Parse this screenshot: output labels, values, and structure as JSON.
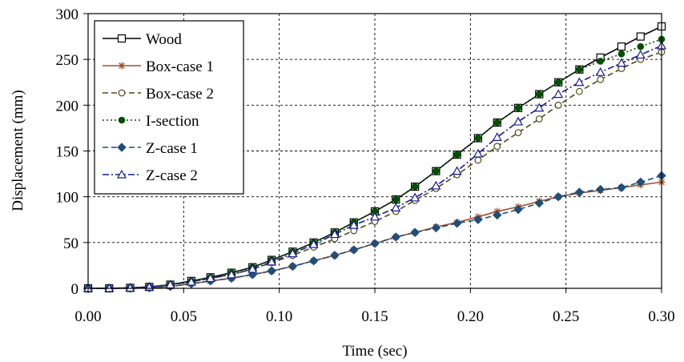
{
  "chart_data": {
    "type": "line",
    "title": "",
    "xlabel": "Time (sec)",
    "ylabel": "Displacement (mm)",
    "xlim": [
      0,
      0.3
    ],
    "ylim": [
      0,
      300
    ],
    "x_ticks": [
      0,
      0.05,
      0.1,
      0.15,
      0.2,
      0.25,
      0.3
    ],
    "x_tick_labels": [
      "0.00",
      "0.05",
      "0.10",
      "0.15",
      "0.20",
      "0.25",
      "0.30"
    ],
    "y_ticks": [
      0,
      50,
      100,
      150,
      200,
      250,
      300
    ],
    "y_tick_labels": [
      "0",
      "50",
      "100",
      "150",
      "200",
      "250",
      "300"
    ],
    "grid": "dashed",
    "legend_position": "top-left",
    "series": [
      {
        "name": "Wood",
        "color": "#000000",
        "line_style": "solid",
        "marker": "open-square",
        "x": [
          0,
          0.011,
          0.022,
          0.032,
          0.043,
          0.054,
          0.064,
          0.075,
          0.086,
          0.096,
          0.107,
          0.118,
          0.129,
          0.139,
          0.15,
          0.161,
          0.171,
          0.182,
          0.193,
          0.204,
          0.214,
          0.225,
          0.236,
          0.246,
          0.257,
          0.268,
          0.279,
          0.289,
          0.3
        ],
        "y": [
          0,
          0,
          0.5,
          1.5,
          4,
          8,
          12,
          17,
          23,
          31,
          40,
          50,
          61,
          72,
          84,
          97,
          111,
          128,
          146,
          164,
          181,
          197,
          212,
          225,
          239,
          252,
          264,
          275,
          286
        ]
      },
      {
        "name": "Box-case 1",
        "color": "#a0522d",
        "line_style": "solid",
        "marker": "star",
        "x": [
          0,
          0.011,
          0.022,
          0.032,
          0.043,
          0.054,
          0.064,
          0.075,
          0.086,
          0.096,
          0.107,
          0.118,
          0.129,
          0.139,
          0.15,
          0.161,
          0.171,
          0.182,
          0.193,
          0.204,
          0.214,
          0.225,
          0.236,
          0.246,
          0.257,
          0.268,
          0.279,
          0.289,
          0.3
        ],
        "y": [
          0,
          0,
          0,
          0.5,
          2,
          5,
          8,
          11,
          15,
          19,
          24,
          30,
          36,
          42,
          49,
          56,
          61,
          67,
          72,
          78,
          84,
          89,
          95,
          100,
          104,
          107,
          110,
          113,
          116
        ]
      },
      {
        "name": "Box-case 2",
        "color": "#4d4d1a",
        "line_style": "dashed",
        "marker": "open-circle",
        "x": [
          0,
          0.011,
          0.022,
          0.032,
          0.043,
          0.054,
          0.064,
          0.075,
          0.086,
          0.096,
          0.107,
          0.118,
          0.129,
          0.139,
          0.15,
          0.161,
          0.171,
          0.182,
          0.193,
          0.204,
          0.214,
          0.225,
          0.236,
          0.246,
          0.257,
          0.268,
          0.279,
          0.289,
          0.3
        ],
        "y": [
          0,
          0,
          0.5,
          1.5,
          4,
          7,
          11,
          15,
          21,
          28,
          36,
          45,
          54,
          63,
          73,
          84,
          96,
          109,
          124,
          140,
          155,
          170,
          185,
          200,
          215,
          228,
          240,
          250,
          258
        ]
      },
      {
        "name": "I-section",
        "color": "#005000",
        "line_style": "dotted",
        "marker": "filled-circle",
        "x": [
          0,
          0.011,
          0.022,
          0.032,
          0.043,
          0.054,
          0.064,
          0.075,
          0.086,
          0.096,
          0.107,
          0.118,
          0.129,
          0.139,
          0.15,
          0.161,
          0.171,
          0.182,
          0.193,
          0.204,
          0.214,
          0.225,
          0.236,
          0.246,
          0.257,
          0.268,
          0.279,
          0.289,
          0.3
        ],
        "y": [
          0,
          0,
          0.5,
          1.5,
          4,
          8,
          12,
          17,
          23,
          31,
          40,
          50,
          61,
          72,
          84,
          97,
          111,
          128,
          146,
          164,
          181,
          197,
          212,
          225,
          239,
          248,
          256,
          264,
          272
        ]
      },
      {
        "name": "Z-case 1",
        "color": "#1f4e79",
        "line_style": "dashed",
        "marker": "filled-diamond",
        "x": [
          0,
          0.011,
          0.022,
          0.032,
          0.043,
          0.054,
          0.064,
          0.075,
          0.086,
          0.096,
          0.107,
          0.118,
          0.129,
          0.139,
          0.15,
          0.161,
          0.171,
          0.182,
          0.193,
          0.204,
          0.214,
          0.225,
          0.236,
          0.246,
          0.257,
          0.268,
          0.279,
          0.289,
          0.3
        ],
        "y": [
          0,
          0,
          0,
          0.5,
          2,
          5,
          8,
          11,
          15,
          19,
          24,
          30,
          36,
          42,
          49,
          56,
          61,
          66,
          71,
          75,
          80,
          86,
          93,
          100,
          105,
          108,
          110,
          116,
          123
        ]
      },
      {
        "name": "Z-case 2",
        "color": "#1a1a8c",
        "line_style": "dash-dot",
        "marker": "open-triangle",
        "x": [
          0,
          0.011,
          0.022,
          0.032,
          0.043,
          0.054,
          0.064,
          0.075,
          0.086,
          0.096,
          0.107,
          0.118,
          0.129,
          0.139,
          0.15,
          0.161,
          0.171,
          0.182,
          0.193,
          0.204,
          0.214,
          0.225,
          0.236,
          0.246,
          0.257,
          0.268,
          0.279,
          0.289,
          0.3
        ],
        "y": [
          0,
          0,
          0.5,
          1.5,
          4,
          7,
          11,
          15,
          21,
          29,
          38,
          48,
          59,
          69,
          78,
          88,
          99,
          112,
          128,
          147,
          165,
          182,
          197,
          212,
          225,
          236,
          246,
          255,
          265
        ]
      }
    ]
  }
}
